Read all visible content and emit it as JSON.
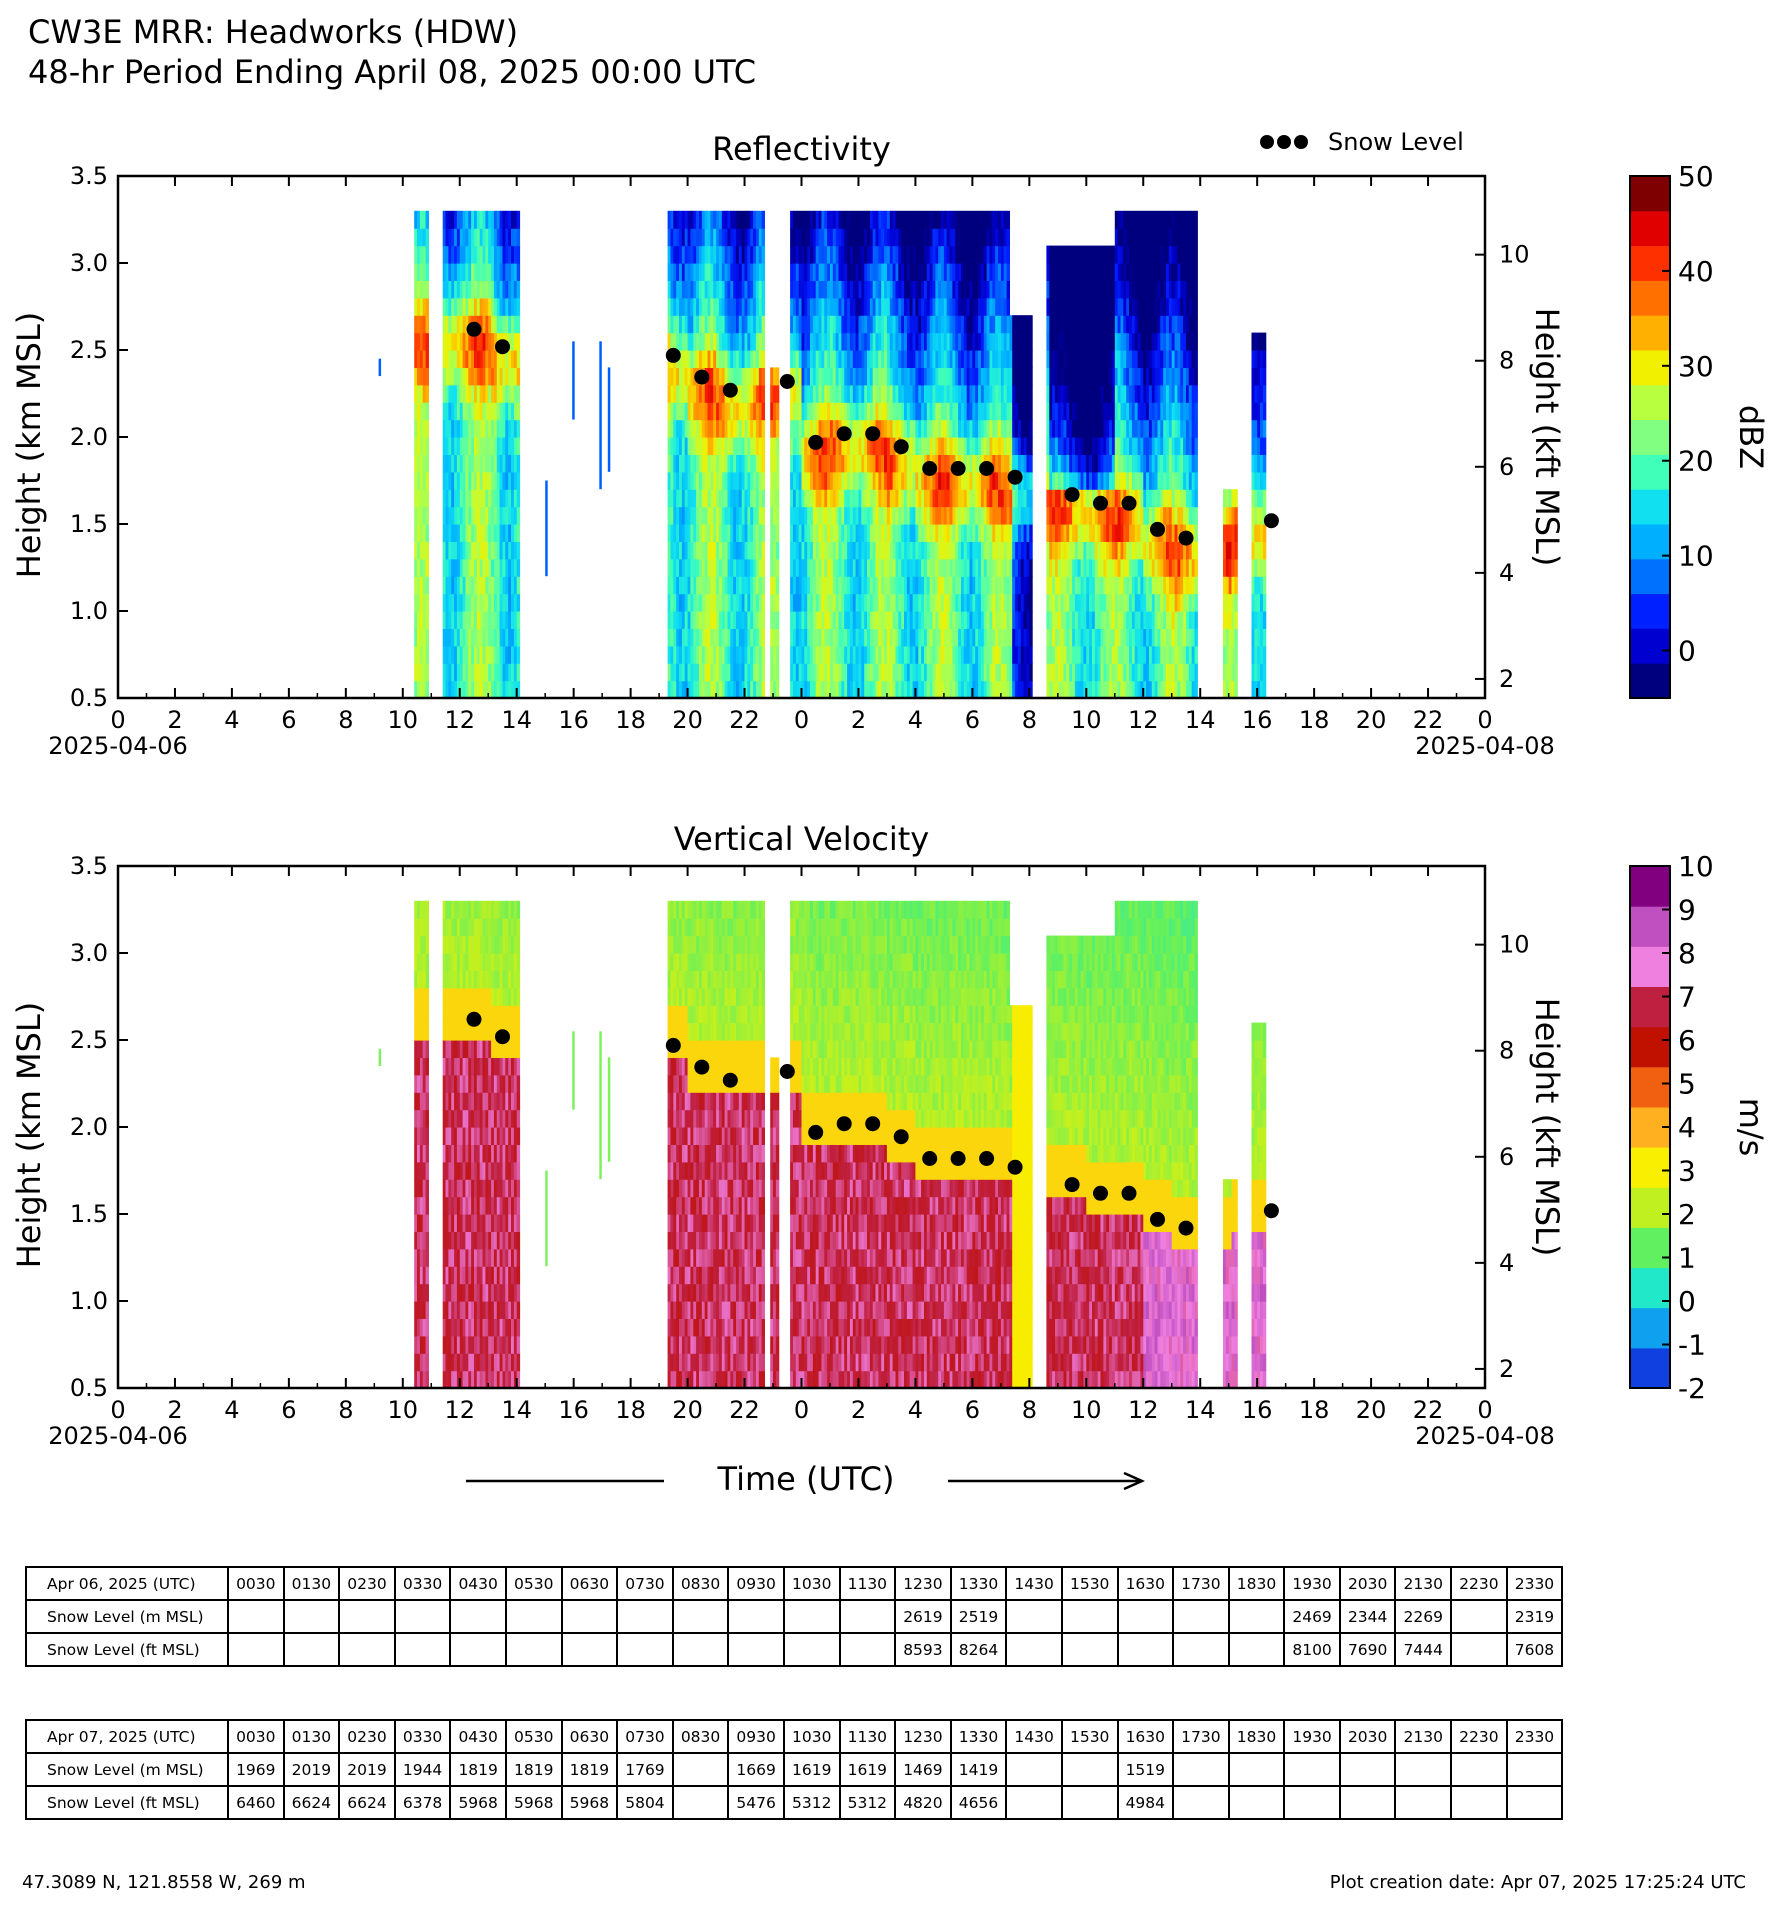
{
  "header": {
    "line1": "CW3E MRR: Headworks (HDW)",
    "line2": "48-hr Period Ending April 08, 2025 00:00 UTC"
  },
  "legend": {
    "snow_level_label": "Snow Level"
  },
  "time_axis_label": "Time (UTC)",
  "footer": {
    "location": "47.3089 N, 121.8558 W, 269 m",
    "created": "Plot creation date: Apr 07, 2025 17:25:24 UTC"
  },
  "chart_data": [
    {
      "type": "heatmap",
      "title": "Reflectivity",
      "ylabel": "Height (km MSL)",
      "y2label": "Height (kft MSL)",
      "colorbar_label": "dBZ",
      "ylim": [
        0.5,
        3.5
      ],
      "y_ticks": [
        "0.5",
        "1.0",
        "1.5",
        "2.0",
        "2.5",
        "3.0",
        "3.5"
      ],
      "y2_ticks": [
        "2",
        "4",
        "6",
        "8",
        "10"
      ],
      "x_range_hours": [
        0,
        48
      ],
      "x_ticks": [
        "0",
        "2",
        "4",
        "6",
        "8",
        "10",
        "12",
        "14",
        "16",
        "18",
        "20",
        "22",
        "0",
        "2",
        "4",
        "6",
        "8",
        "10",
        "12",
        "14",
        "16",
        "18",
        "20",
        "22",
        "0"
      ],
      "x_date_start": "2025-04-06",
      "x_date_end": "2025-04-08",
      "colorbar_ticks": [
        "0",
        "10",
        "20",
        "30",
        "40",
        "50"
      ],
      "colorbar_range": [
        -5,
        50
      ],
      "colormap": [
        "#00007f",
        "#0000d0",
        "#0020ff",
        "#0070ff",
        "#00b0ff",
        "#10e0f0",
        "#40ffb8",
        "#80ff80",
        "#b8ff40",
        "#f0f000",
        "#ffb000",
        "#ff7000",
        "#ff3000",
        "#e00000",
        "#7f0000"
      ]
    },
    {
      "type": "heatmap",
      "title": "Vertical Velocity",
      "ylabel": "Height (km MSL)",
      "y2label": "Height (kft MSL)",
      "colorbar_label": "m/s",
      "ylim": [
        0.5,
        3.5
      ],
      "y_ticks": [
        "0.5",
        "1.0",
        "1.5",
        "2.0",
        "2.5",
        "3.0",
        "3.5"
      ],
      "y2_ticks": [
        "2",
        "4",
        "6",
        "8",
        "10"
      ],
      "x_range_hours": [
        0,
        48
      ],
      "x_ticks": [
        "0",
        "2",
        "4",
        "6",
        "8",
        "10",
        "12",
        "14",
        "16",
        "18",
        "20",
        "22",
        "0",
        "2",
        "4",
        "6",
        "8",
        "10",
        "12",
        "14",
        "16",
        "18",
        "20",
        "22",
        "0"
      ],
      "x_date_start": "2025-04-06",
      "x_date_end": "2025-04-08",
      "colorbar_ticks": [
        "-2",
        "-1",
        "0",
        "1",
        "2",
        "3",
        "4",
        "5",
        "6",
        "7",
        "8",
        "9",
        "10"
      ],
      "colorbar_range": [
        -2,
        10
      ],
      "colormap": [
        "#1040e0",
        "#10a0f0",
        "#20e8c8",
        "#60f060",
        "#c0f020",
        "#f8f000",
        "#ffb020",
        "#f06010",
        "#c01000",
        "#c02040",
        "#f080e0",
        "#c050c0",
        "#800080"
      ]
    }
  ],
  "snow_level_points": [
    {
      "t": 12.5,
      "km": 2.619
    },
    {
      "t": 13.5,
      "km": 2.519
    },
    {
      "t": 19.5,
      "km": 2.469
    },
    {
      "t": 20.5,
      "km": 2.344
    },
    {
      "t": 21.5,
      "km": 2.269
    },
    {
      "t": 23.5,
      "km": 2.319
    },
    {
      "t": 24.5,
      "km": 1.969
    },
    {
      "t": 25.5,
      "km": 2.019
    },
    {
      "t": 26.5,
      "km": 2.019
    },
    {
      "t": 27.5,
      "km": 1.944
    },
    {
      "t": 28.5,
      "km": 1.819
    },
    {
      "t": 29.5,
      "km": 1.819
    },
    {
      "t": 30.5,
      "km": 1.819
    },
    {
      "t": 31.5,
      "km": 1.769
    },
    {
      "t": 33.5,
      "km": 1.669
    },
    {
      "t": 34.5,
      "km": 1.619
    },
    {
      "t": 35.5,
      "km": 1.619
    },
    {
      "t": 36.5,
      "km": 1.469
    },
    {
      "t": 37.5,
      "km": 1.419
    },
    {
      "t": 40.5,
      "km": 1.519
    }
  ],
  "tables": [
    {
      "date_label": "Apr 06, 2025 (UTC)",
      "times": [
        "0030",
        "0130",
        "0230",
        "0330",
        "0430",
        "0530",
        "0630",
        "0730",
        "0830",
        "0930",
        "1030",
        "1130",
        "1230",
        "1330",
        "1430",
        "1530",
        "1630",
        "1730",
        "1830",
        "1930",
        "2030",
        "2130",
        "2230",
        "2330"
      ],
      "rows": [
        {
          "label": "Snow Level (m MSL)",
          "values": [
            "",
            "",
            "",
            "",
            "",
            "",
            "",
            "",
            "",
            "",
            "",
            "",
            "2619",
            "2519",
            "",
            "",
            "",
            "",
            "",
            "2469",
            "2344",
            "2269",
            "",
            "2319"
          ]
        },
        {
          "label": "Snow Level (ft MSL)",
          "values": [
            "",
            "",
            "",
            "",
            "",
            "",
            "",
            "",
            "",
            "",
            "",
            "",
            "8593",
            "8264",
            "",
            "",
            "",
            "",
            "",
            "8100",
            "7690",
            "7444",
            "",
            "7608"
          ]
        }
      ]
    },
    {
      "date_label": "Apr 07, 2025 (UTC)",
      "times": [
        "0030",
        "0130",
        "0230",
        "0330",
        "0430",
        "0530",
        "0630",
        "0730",
        "0830",
        "0930",
        "1030",
        "1130",
        "1230",
        "1330",
        "1430",
        "1530",
        "1630",
        "1730",
        "1830",
        "1930",
        "2030",
        "2130",
        "2230",
        "2330"
      ],
      "rows": [
        {
          "label": "Snow Level (m MSL)",
          "values": [
            "1969",
            "2019",
            "2019",
            "1944",
            "1819",
            "1819",
            "1819",
            "1769",
            "",
            "1669",
            "1619",
            "1619",
            "1469",
            "1419",
            "",
            "",
            "1519",
            "",
            "",
            "",
            "",
            "",
            "",
            ""
          ]
        },
        {
          "label": "Snow Level (ft MSL)",
          "values": [
            "6460",
            "6624",
            "6624",
            "6378",
            "5968",
            "5968",
            "5968",
            "5804",
            "",
            "5476",
            "5312",
            "5312",
            "4820",
            "4656",
            "",
            "",
            "4984",
            "",
            "",
            "",
            "",
            "",
            "",
            ""
          ]
        }
      ]
    }
  ]
}
